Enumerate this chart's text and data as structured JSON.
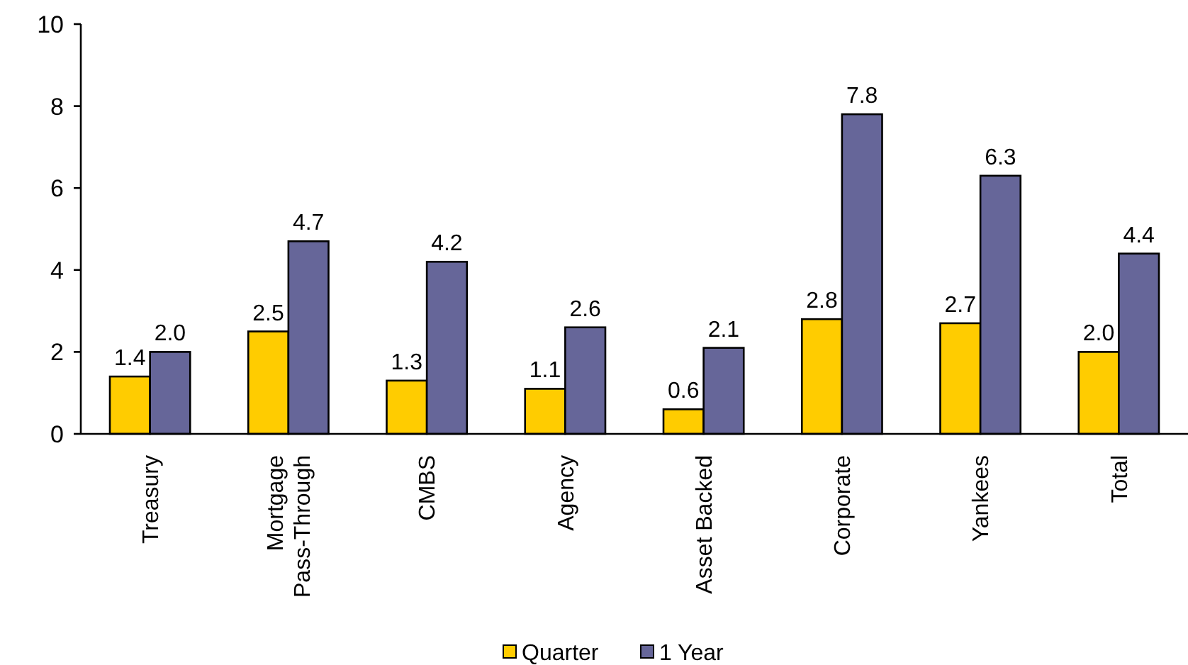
{
  "chart_data": {
    "type": "bar",
    "categories": [
      "Treasury",
      "Mortgage Pass-Through",
      "CMBS",
      "Agency",
      "Asset Backed",
      "Corporate",
      "Yankees",
      "Total"
    ],
    "series": [
      {
        "name": "Quarter",
        "color": "#ffcc00",
        "values": [
          1.4,
          2.5,
          1.3,
          1.1,
          0.6,
          2.8,
          2.7,
          2.0
        ],
        "value_labels": [
          "1.4",
          "2.5",
          "1.3",
          "1.1",
          "0.6",
          "2.8",
          "2.7",
          "2.0"
        ]
      },
      {
        "name": "1 Year",
        "color": "#666699",
        "values": [
          2.0,
          4.7,
          4.2,
          2.6,
          2.1,
          7.8,
          6.3,
          4.4
        ],
        "value_labels": [
          "2.0",
          "4.7",
          "4.2",
          "2.6",
          "2.1",
          "7.8",
          "6.3",
          "4.4"
        ]
      }
    ],
    "ylim": [
      0,
      10
    ],
    "yticks": [
      0,
      2,
      4,
      6,
      8,
      10
    ],
    "legend": "bottom",
    "grid": false
  }
}
